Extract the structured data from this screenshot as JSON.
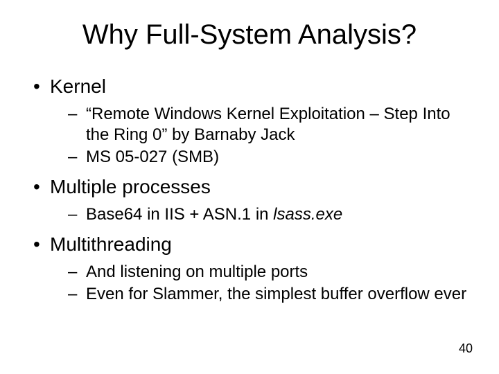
{
  "slide": {
    "title": "Why Full-System Analysis?",
    "page_number": "40",
    "sections": [
      {
        "heading": "Kernel",
        "items": [
          {
            "text": "“Remote Windows Kernel Exploitation – Step Into the Ring 0” by Barnaby Jack",
            "italic_tail": ""
          },
          {
            "text": "MS 05-027 (SMB)",
            "italic_tail": ""
          }
        ]
      },
      {
        "heading": "Multiple processes",
        "items": [
          {
            "text": "Base64 in IIS + ASN.1 in ",
            "italic_tail": "lsass.exe"
          }
        ]
      },
      {
        "heading": "Multithreading",
        "items": [
          {
            "text": "And listening on multiple ports",
            "italic_tail": ""
          },
          {
            "text": "Even for Slammer, the simplest buffer overflow ever",
            "italic_tail": ""
          }
        ]
      }
    ]
  },
  "colors": {
    "background": "#ffffff",
    "text": "#000000"
  }
}
